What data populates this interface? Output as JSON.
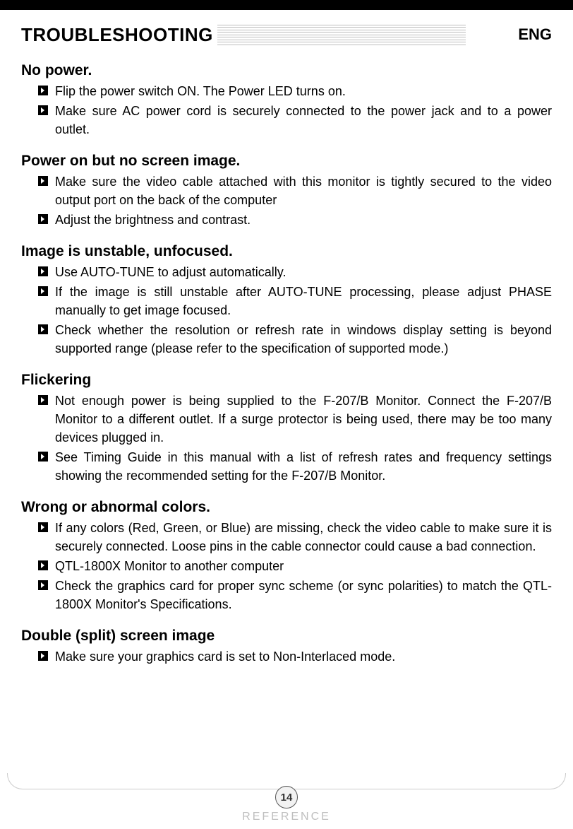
{
  "page_number": "14",
  "header": {
    "title": "TROUBLESHOOTING",
    "lang": "ENG",
    "footer_label": "REFERENCE"
  },
  "sections": [
    {
      "title": "No power.",
      "items": [
        "Flip the power switch ON.  The Power LED turns on.",
        "Make sure AC power cord is securely connected to the power jack and to a power outlet."
      ]
    },
    {
      "title": "Power on but no screen image.",
      "items": [
        "Make sure the video cable attached with this monitor is tightly secured to the video output port on the back of the computer",
        "Adjust the brightness and contrast."
      ]
    },
    {
      "title": "Image is unstable, unfocused.",
      "items": [
        "Use  AUTO-TUNE  to adjust automatically.",
        "If the image is still unstable after  AUTO-TUNE  processing, please adjust  PHASE manually to get image focused.",
        "Check whether the resolution or refresh rate in windows display setting is beyond supported range (please refer to the specification of supported mode.)"
      ]
    },
    {
      "title": "Flickering",
      "items": [
        "Not enough power is being supplied to the F-207/B Monitor. Connect the F-207/B Monitor to a different outlet.  If a surge protector is being used, there may be too many devices plugged in.",
        "See Timing Guide in this manual with a list of refresh rates and frequency settings showing the recommended setting for the F-207/B Monitor."
      ]
    },
    {
      "title": "Wrong or abnormal colors.",
      "items": [
        "If any colors (Red, Green, or Blue) are missing, check the video cable to make sure it is securely connected.  Loose pins in the cable connector could cause a bad connection.",
        "QTL-1800X Monitor to another computer",
        "Check the graphics card for proper sync scheme (or sync polarities) to match the QTL-1800X Monitor's Specifications."
      ]
    },
    {
      "title": "Double (split) screen image",
      "items": [
        "Make sure your graphics card is set to Non-Interlaced mode."
      ]
    }
  ]
}
